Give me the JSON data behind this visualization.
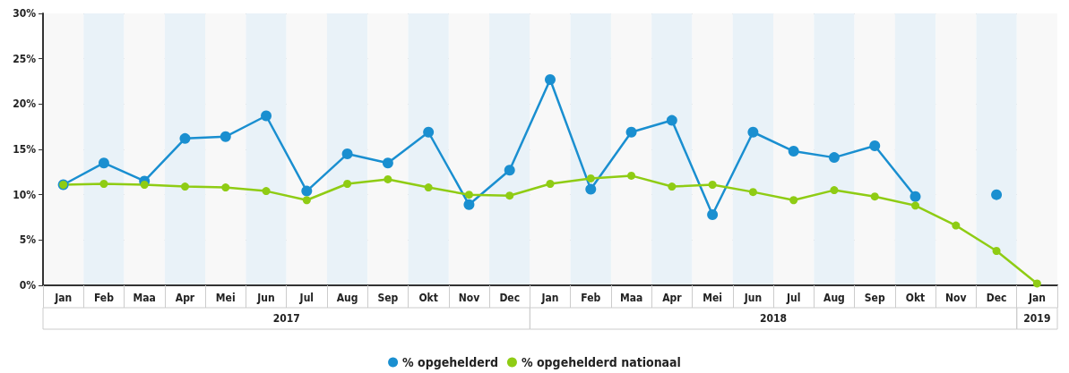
{
  "chart_data": {
    "type": "line",
    "categories": [
      "Jan",
      "Feb",
      "Maa",
      "Apr",
      "Mei",
      "Jun",
      "Jul",
      "Aug",
      "Sep",
      "Okt",
      "Nov",
      "Dec",
      "Jan",
      "Feb",
      "Maa",
      "Apr",
      "Mei",
      "Jun",
      "Jul",
      "Aug",
      "Sep",
      "Okt",
      "Nov",
      "Dec",
      "Jan"
    ],
    "series": [
      {
        "name": "% opgehelderd",
        "color": "#1a8fd0",
        "values": [
          11.1,
          13.5,
          11.5,
          16.2,
          16.4,
          18.7,
          10.4,
          14.5,
          13.5,
          16.9,
          8.9,
          12.7,
          22.7,
          10.6,
          16.9,
          18.2,
          7.8,
          16.9,
          14.8,
          14.1,
          15.4,
          9.8,
          null,
          10.0,
          null
        ]
      },
      {
        "name": "% opgehelderd nationaal",
        "color": "#8fcc14",
        "values": [
          11.1,
          11.2,
          11.1,
          10.9,
          10.8,
          10.4,
          9.4,
          11.2,
          11.7,
          10.8,
          10.0,
          9.9,
          11.2,
          11.8,
          12.1,
          10.9,
          11.1,
          10.3,
          9.4,
          10.5,
          9.8,
          8.8,
          6.6,
          3.8,
          0.2
        ]
      }
    ],
    "ylim": [
      0,
      30
    ],
    "yticks": [
      {
        "value": 0,
        "label": "0%"
      },
      {
        "value": 5,
        "label": "5%"
      },
      {
        "value": 10,
        "label": "10%"
      },
      {
        "value": 15,
        "label": "15%"
      },
      {
        "value": 20,
        "label": "20%"
      },
      {
        "value": 25,
        "label": "25%"
      },
      {
        "value": 30,
        "label": "30%"
      }
    ],
    "annotations": [
      "2017",
      "2018",
      "2019"
    ],
    "grid": "y",
    "legend": "bottom",
    "marker": "circle",
    "line_style": "solid"
  }
}
